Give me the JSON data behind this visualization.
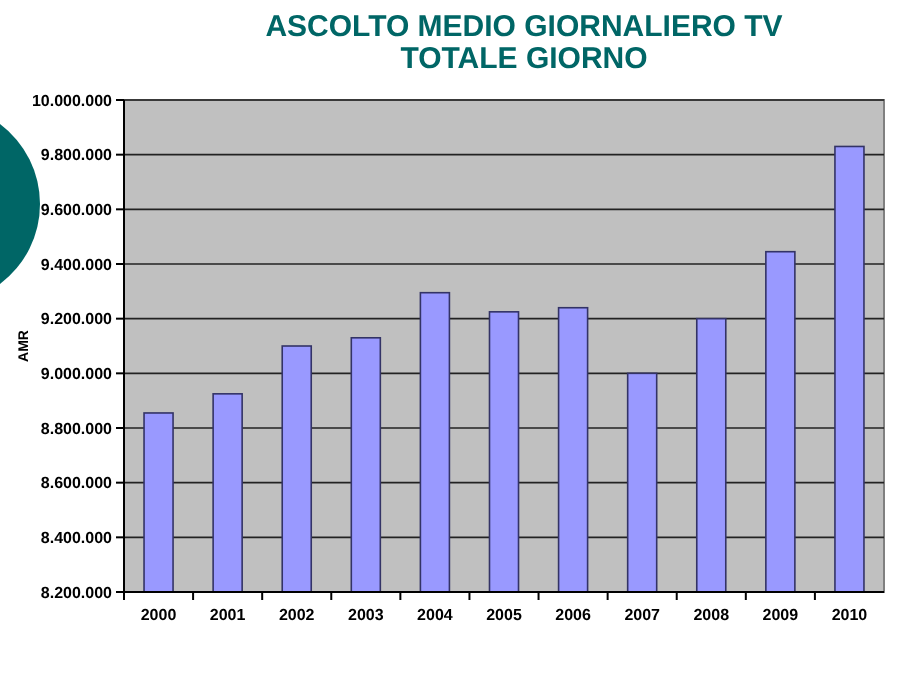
{
  "chart_data": {
    "type": "bar",
    "title": "ASCOLTO MEDIO GIORNALIERO TV\nTOTALE GIORNO",
    "ylabel": "AMR",
    "categories": [
      "2000",
      "2001",
      "2002",
      "2003",
      "2004",
      "2005",
      "2006",
      "2007",
      "2008",
      "2009",
      "2010"
    ],
    "values": [
      8855000,
      8925000,
      9100000,
      9130000,
      9295000,
      9225000,
      9240000,
      9000000,
      9200000,
      9445000,
      9830000
    ],
    "color": "#9999ff",
    "ylim": [
      8200000,
      10000000
    ],
    "yticks": [
      {
        "value": 8200000,
        "label": "8.200.000"
      },
      {
        "value": 8400000,
        "label": "8.400.000"
      },
      {
        "value": 8600000,
        "label": "8.600.000"
      },
      {
        "value": 8800000,
        "label": "8.800.000"
      },
      {
        "value": 9000000,
        "label": "9.000.000"
      },
      {
        "value": 9200000,
        "label": "9.200.000"
      },
      {
        "value": 9400000,
        "label": "9.400.000"
      },
      {
        "value": 9600000,
        "label": "9.600.000"
      },
      {
        "value": 9800000,
        "label": "9.800.000"
      },
      {
        "value": 10000000,
        "label": "10.000.000"
      }
    ],
    "grid": "y"
  }
}
